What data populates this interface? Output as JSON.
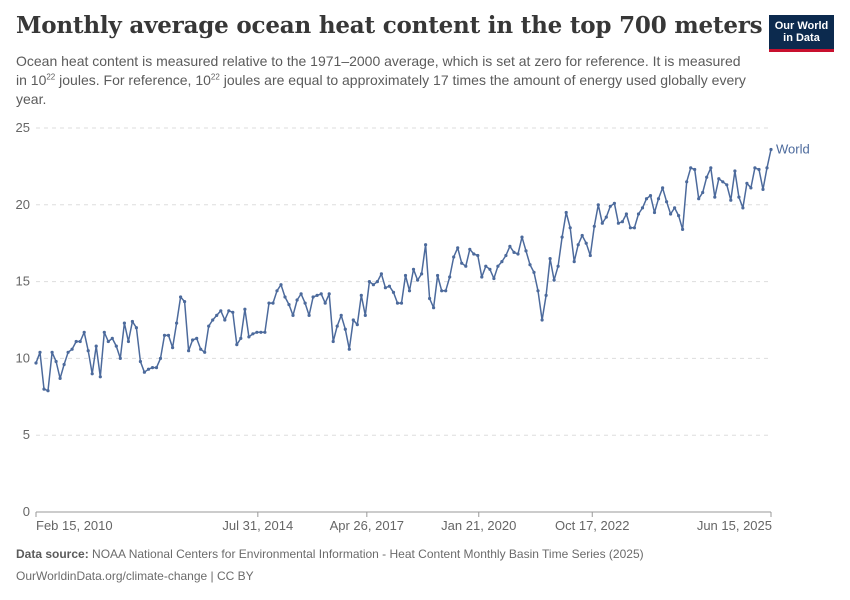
{
  "header": {
    "title": "Monthly average ocean heat content in the top 700 meters",
    "subtitle_part1": "Ocean heat content is measured relative to the 1971–2000 average, which is set at zero for reference. It is measured in 10",
    "subtitle_sup1": "22",
    "subtitle_part2": " joules. For reference, 10",
    "subtitle_sup2": "22",
    "subtitle_part3": " joules are equal to approximately 17 times the amount of energy used globally every year."
  },
  "logo": {
    "line1": "Our World",
    "line2": "in Data",
    "bg_color": "#0c2a4e",
    "accent_color": "#c8102e"
  },
  "footer": {
    "source_label": "Data source:",
    "source_text": " NOAA National Centers for Environmental Information - Heat Content Monthly Basin Time Series (2025)",
    "credit": "OurWorldinData.org/climate-change | CC BY"
  },
  "chart_data": {
    "type": "line",
    "xlabel": "",
    "ylabel": "",
    "ylim": [
      0,
      25
    ],
    "y_ticks": [
      0,
      5,
      10,
      15,
      20,
      25
    ],
    "x_ticks": [
      "Feb 15, 2010",
      "Jul 31, 2014",
      "Apr 26, 2017",
      "Jan 21, 2020",
      "Oct 17, 2022",
      "Jun 15, 2025"
    ],
    "grid": "horizontal dashed",
    "series": [
      {
        "name": "World",
        "color": "#4c6a9c",
        "values": [
          9.7,
          10.4,
          8.0,
          7.9,
          10.4,
          9.8,
          8.7,
          9.6,
          10.4,
          10.6,
          11.1,
          11.1,
          11.7,
          10.5,
          9.0,
          10.8,
          8.8,
          11.7,
          11.1,
          11.3,
          10.8,
          10.0,
          12.3,
          11.1,
          12.4,
          12.0,
          9.8,
          9.1,
          9.3,
          9.4,
          9.4,
          10.0,
          11.5,
          11.5,
          10.7,
          12.3,
          14.0,
          13.7,
          10.5,
          11.2,
          11.3,
          10.6,
          10.4,
          12.1,
          12.5,
          12.8,
          13.1,
          12.5,
          13.1,
          13.0,
          10.9,
          11.3,
          13.2,
          11.4,
          11.6,
          11.7,
          11.7,
          11.7,
          13.6,
          13.6,
          14.4,
          14.8,
          14.0,
          13.5,
          12.8,
          13.8,
          14.2,
          13.6,
          12.8,
          14.0,
          14.1,
          14.2,
          13.6,
          14.2,
          11.1,
          12.1,
          12.8,
          11.9,
          10.6,
          12.5,
          12.2,
          14.1,
          12.8,
          15.0,
          14.8,
          15.0,
          15.5,
          14.6,
          14.7,
          14.3,
          13.6,
          13.6,
          15.4,
          14.4,
          15.8,
          15.1,
          15.5,
          17.4,
          13.9,
          13.3,
          15.4,
          14.4,
          14.4,
          15.3,
          16.6,
          17.2,
          16.2,
          16.0,
          17.1,
          16.8,
          16.7,
          15.3,
          16.0,
          15.8,
          15.2,
          16.0,
          16.3,
          16.7,
          17.3,
          16.9,
          16.8,
          17.9,
          17.0,
          16.1,
          15.6,
          14.4,
          12.5,
          14.1,
          16.5,
          15.1,
          16.0,
          17.9,
          19.5,
          18.5,
          16.3,
          17.4,
          18.0,
          17.5,
          16.7,
          18.6,
          20.0,
          18.8,
          19.2,
          19.9,
          20.1,
          18.8,
          18.9,
          19.4,
          18.5,
          18.5,
          19.4,
          19.8,
          20.4,
          20.6,
          19.5,
          20.4,
          21.1,
          20.2,
          19.4,
          19.8,
          19.3,
          18.4,
          21.5,
          22.4,
          22.3,
          20.4,
          20.8,
          21.8,
          22.4,
          20.5,
          21.7,
          21.5,
          21.3,
          20.3,
          22.2,
          20.5,
          19.8,
          21.4,
          21.1,
          22.4,
          22.3,
          21.0,
          22.4,
          23.6
        ]
      }
    ]
  }
}
